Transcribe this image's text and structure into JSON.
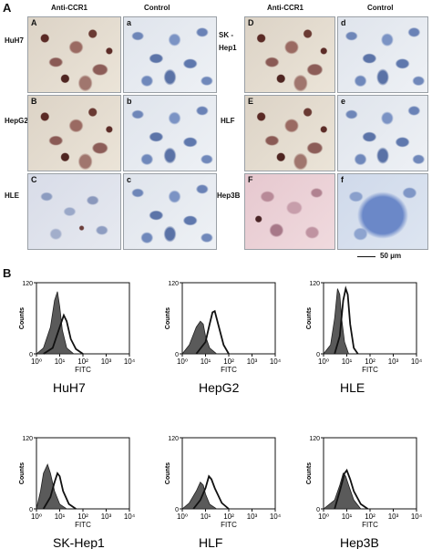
{
  "panel_a": {
    "letter": "A",
    "left_columns": {
      "anti": "Anti-CCR1",
      "control": "Control"
    },
    "right_columns": {
      "anti": "Anti-CCR1",
      "control": "Control"
    },
    "left_rows": [
      {
        "label": "HuH7",
        "anti_letter": "A",
        "control_letter": "a",
        "anti_style": "ccr1",
        "control_style": "ctrl"
      },
      {
        "label": "HepG2",
        "anti_letter": "B",
        "control_letter": "b",
        "anti_style": "ccr1",
        "control_style": "ctrl"
      },
      {
        "label": "HLE",
        "anti_letter": "C",
        "control_letter": "c",
        "anti_style": "pale",
        "control_style": "ctrl"
      }
    ],
    "right_rows": [
      {
        "label_line1": "SK -",
        "label_line2": "Hep1",
        "anti_letter": "D",
        "control_letter": "d",
        "anti_style": "ccr1",
        "control_style": "ctrl"
      },
      {
        "label_line1": "HLF",
        "label_line2": "",
        "anti_letter": "E",
        "control_letter": "e",
        "anti_style": "ccr1",
        "control_style": "ctrl"
      },
      {
        "label_line1": "Hep3B",
        "label_line2": "",
        "anti_letter": "F",
        "control_letter": "f",
        "anti_style": "pink",
        "control_style": "dense"
      }
    ],
    "scale_bar": "50 μm"
  },
  "panel_b": {
    "letter": "B"
  },
  "chart_data": [
    {
      "type": "histogram",
      "cell_line": "HuH7",
      "xlabel": "FITC",
      "ylabel": "Counts",
      "ylim": [
        0,
        120
      ],
      "xscale": "log",
      "xlim": [
        1,
        10000
      ],
      "x_ticks": [
        "10⁰",
        "10¹",
        "10²",
        "10³",
        "10⁴"
      ],
      "y_ticks": [
        "0",
        "120"
      ],
      "series": [
        {
          "style": "filled-gray",
          "points": [
            [
              1,
              0
            ],
            [
              2,
              10
            ],
            [
              4,
              45
            ],
            [
              6,
              90
            ],
            [
              8,
              105
            ],
            [
              10,
              80
            ],
            [
              13,
              40
            ],
            [
              20,
              10
            ],
            [
              40,
              0
            ]
          ]
        },
        {
          "style": "open-line",
          "points": [
            [
              2,
              0
            ],
            [
              5,
              10
            ],
            [
              10,
              45
            ],
            [
              15,
              65
            ],
            [
              20,
              55
            ],
            [
              30,
              25
            ],
            [
              50,
              8
            ],
            [
              100,
              0
            ]
          ]
        }
      ]
    },
    {
      "type": "histogram",
      "cell_line": "HepG2",
      "xlabel": "FITC",
      "ylabel": "Counts",
      "ylim": [
        0,
        120
      ],
      "xscale": "log",
      "xlim": [
        1,
        10000
      ],
      "x_ticks": [
        "10⁰",
        "10¹",
        "10²",
        "10³",
        "10⁴"
      ],
      "y_ticks": [
        "0",
        "120"
      ],
      "series": [
        {
          "style": "filled-gray",
          "points": [
            [
              1,
              0
            ],
            [
              2,
              15
            ],
            [
              4,
              45
            ],
            [
              6,
              55
            ],
            [
              8,
              50
            ],
            [
              10,
              30
            ],
            [
              15,
              10
            ],
            [
              30,
              0
            ]
          ]
        },
        {
          "style": "open-line",
          "points": [
            [
              4,
              0
            ],
            [
              10,
              20
            ],
            [
              15,
              50
            ],
            [
              20,
              70
            ],
            [
              25,
              72
            ],
            [
              35,
              50
            ],
            [
              60,
              15
            ],
            [
              100,
              0
            ]
          ]
        }
      ]
    },
    {
      "type": "histogram",
      "cell_line": "HLE",
      "xlabel": "FITC",
      "ylabel": "Counts",
      "ylim": [
        0,
        120
      ],
      "xscale": "log",
      "xlim": [
        1,
        10000
      ],
      "x_ticks": [
        "10⁰",
        "10¹",
        "10²",
        "10³",
        "10⁴"
      ],
      "y_ticks": [
        "0",
        "120"
      ],
      "series": [
        {
          "style": "filled-gray",
          "points": [
            [
              1,
              0
            ],
            [
              2,
              15
            ],
            [
              3,
              60
            ],
            [
              4,
              110
            ],
            [
              5,
              100
            ],
            [
              6,
              60
            ],
            [
              8,
              20
            ],
            [
              12,
              0
            ]
          ]
        },
        {
          "style": "open-line",
          "points": [
            [
              3,
              0
            ],
            [
              5,
              30
            ],
            [
              7,
              90
            ],
            [
              9,
              110
            ],
            [
              11,
              100
            ],
            [
              14,
              50
            ],
            [
              20,
              10
            ],
            [
              30,
              0
            ]
          ]
        }
      ]
    },
    {
      "type": "histogram",
      "cell_line": "SK-Hep1",
      "xlabel": "FITC",
      "ylabel": "Counts",
      "ylim": [
        0,
        120
      ],
      "xscale": "log",
      "xlim": [
        1,
        10000
      ],
      "x_ticks": [
        "10⁰",
        "10¹",
        "10²",
        "10³",
        "10⁴"
      ],
      "y_ticks": [
        "0",
        "120"
      ],
      "series": [
        {
          "style": "filled-gray",
          "points": [
            [
              1,
              0
            ],
            [
              1.5,
              30
            ],
            [
              2,
              60
            ],
            [
              3,
              75
            ],
            [
              4,
              60
            ],
            [
              6,
              30
            ],
            [
              10,
              8
            ],
            [
              20,
              0
            ]
          ]
        },
        {
          "style": "open-line",
          "points": [
            [
              2,
              0
            ],
            [
              4,
              20
            ],
            [
              6,
              45
            ],
            [
              8,
              60
            ],
            [
              10,
              55
            ],
            [
              14,
              30
            ],
            [
              25,
              8
            ],
            [
              50,
              0
            ]
          ]
        }
      ]
    },
    {
      "type": "histogram",
      "cell_line": "HLF",
      "xlabel": "FITC",
      "ylabel": "Counts",
      "ylim": [
        0,
        120
      ],
      "xscale": "log",
      "xlim": [
        1,
        10000
      ],
      "x_ticks": [
        "10⁰",
        "10¹",
        "10²",
        "10³",
        "10⁴"
      ],
      "y_ticks": [
        "0",
        "120"
      ],
      "series": [
        {
          "style": "filled-gray",
          "points": [
            [
              1,
              0
            ],
            [
              2,
              10
            ],
            [
              4,
              30
            ],
            [
              6,
              45
            ],
            [
              8,
              40
            ],
            [
              10,
              25
            ],
            [
              15,
              8
            ],
            [
              30,
              0
            ]
          ]
        },
        {
          "style": "open-line",
          "points": [
            [
              3,
              0
            ],
            [
              6,
              15
            ],
            [
              10,
              35
            ],
            [
              14,
              55
            ],
            [
              18,
              50
            ],
            [
              25,
              35
            ],
            [
              50,
              10
            ],
            [
              100,
              0
            ]
          ]
        }
      ]
    },
    {
      "type": "histogram",
      "cell_line": "Hep3B",
      "xlabel": "FITC",
      "ylabel": "Counts",
      "ylim": [
        0,
        120
      ],
      "xscale": "log",
      "xlim": [
        1,
        10000
      ],
      "x_ticks": [
        "10⁰",
        "10¹",
        "10²",
        "10³",
        "10⁴"
      ],
      "y_ticks": [
        "0",
        "120"
      ],
      "series": [
        {
          "style": "filled-gray",
          "points": [
            [
              1,
              0
            ],
            [
              3,
              15
            ],
            [
              5,
              40
            ],
            [
              7,
              60
            ],
            [
              9,
              55
            ],
            [
              12,
              40
            ],
            [
              20,
              15
            ],
            [
              40,
              0
            ]
          ]
        },
        {
          "style": "open-line",
          "points": [
            [
              3,
              0
            ],
            [
              5,
              30
            ],
            [
              8,
              60
            ],
            [
              10,
              65
            ],
            [
              14,
              50
            ],
            [
              20,
              30
            ],
            [
              40,
              8
            ],
            [
              80,
              0
            ]
          ]
        }
      ]
    }
  ]
}
